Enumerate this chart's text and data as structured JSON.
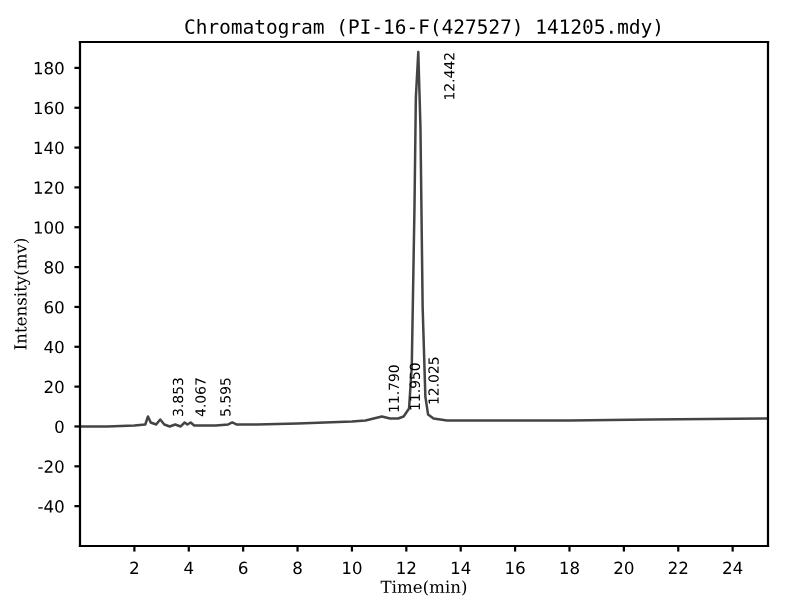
{
  "chart_data": {
    "type": "line",
    "title": "Chromatogram (PI-16-F(427527) 141205.mdy)",
    "xlabel": "Time(min)",
    "ylabel": "Intensity(mv)",
    "x": [
      0,
      1,
      2,
      2.4,
      2.5,
      2.6,
      2.8,
      2.95,
      3.1,
      3.3,
      3.5,
      3.7,
      3.85,
      3.95,
      4.07,
      4.2,
      4.6,
      5,
      5.45,
      5.6,
      5.75,
      6.5,
      8,
      9,
      10,
      10.5,
      10.8,
      11.1,
      11.4,
      11.7,
      11.9,
      12.0,
      12.1,
      12.2,
      12.3,
      12.35,
      12.44,
      12.52,
      12.6,
      12.7,
      12.8,
      13,
      13.5,
      15,
      18,
      21,
      25.3
    ],
    "series": [
      {
        "color": "#444444",
        "values": [
          0,
          0,
          0.5,
          1,
          5,
          2,
          1,
          3.5,
          1,
          0,
          1,
          0,
          2,
          1,
          2,
          0.5,
          0.5,
          0.5,
          1,
          2,
          1,
          1,
          1.5,
          2,
          2.5,
          3,
          4,
          5,
          4,
          4,
          5,
          7,
          9,
          30,
          110,
          165,
          188,
          150,
          60,
          15,
          6,
          4,
          3,
          3,
          3,
          3.5,
          4
        ]
      }
    ],
    "xlim": [
      0,
      25.3
    ],
    "xticks": [
      2,
      4,
      6,
      8,
      10,
      12,
      14,
      16,
      18,
      20,
      22,
      24
    ],
    "ylim": [
      -60,
      193
    ],
    "yticks": [
      -40,
      -20,
      0,
      20,
      40,
      60,
      80,
      100,
      120,
      140,
      160,
      180
    ],
    "grid": false,
    "legend": false,
    "marker": "none",
    "line_style": "solid",
    "annotations": [
      {
        "text": "3.853",
        "x": 3.853,
        "y": 2
      },
      {
        "text": "4.067",
        "x": 4.067,
        "y": 2
      },
      {
        "text": "5.595",
        "x": 5.595,
        "y": 2
      },
      {
        "text": "11.790",
        "x": 11.79,
        "y": 4
      },
      {
        "text": "11.950",
        "x": 11.95,
        "y": 5
      },
      {
        "text": "12.025",
        "x": 12.025,
        "y": 8
      },
      {
        "text": "12.442",
        "x": 12.442,
        "y": 188
      }
    ]
  }
}
